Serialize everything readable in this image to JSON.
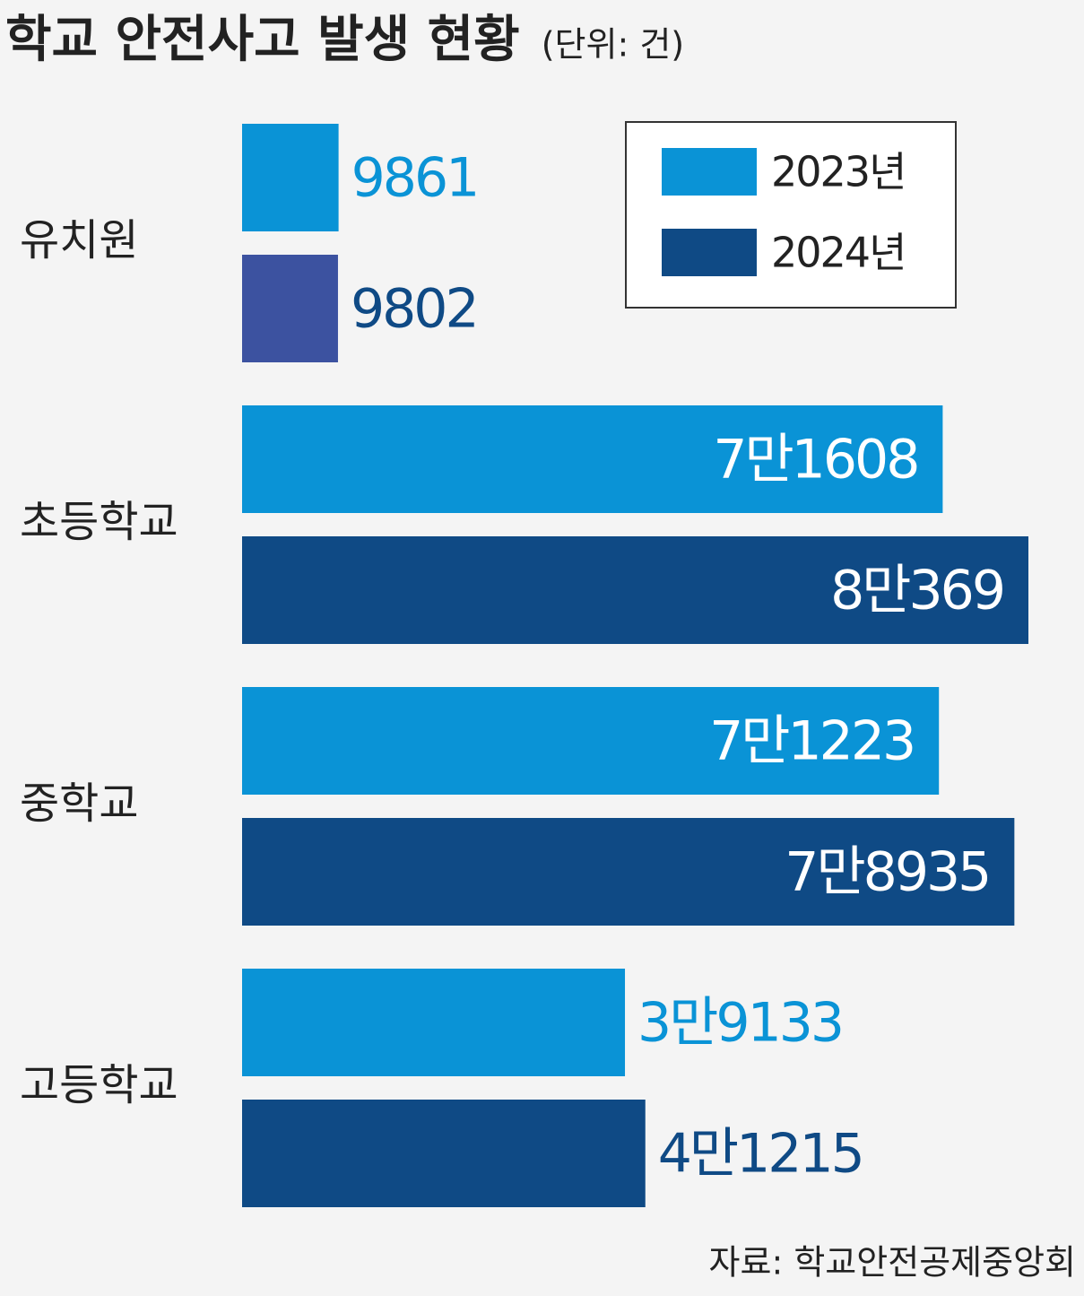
{
  "chart_data": {
    "type": "hbar",
    "title": "학교 안전사고 발생 현황",
    "subtitle": "(단위: 건)",
    "source": "자료: 학교안전공제중앙회",
    "categories": [
      "유치원",
      "초등학교",
      "중학교",
      "고등학교"
    ],
    "series": [
      {
        "name": "2023년",
        "color": "#0a93d6",
        "values": [
          9861,
          71608,
          71223,
          39133
        ],
        "value_labels": [
          "9861",
          "7만1608",
          "7만1223",
          "3만9133"
        ]
      },
      {
        "name": "2024년",
        "color": "#0f4a85",
        "colors": [
          "#3c52a0",
          "#0f4a85",
          "#0f4a85",
          "#0f4a85"
        ],
        "values": [
          9802,
          80369,
          78935,
          41215
        ],
        "value_labels": [
          "9802",
          "8만369",
          "7만8935",
          "4만1215"
        ]
      }
    ],
    "legend": "top-right"
  }
}
